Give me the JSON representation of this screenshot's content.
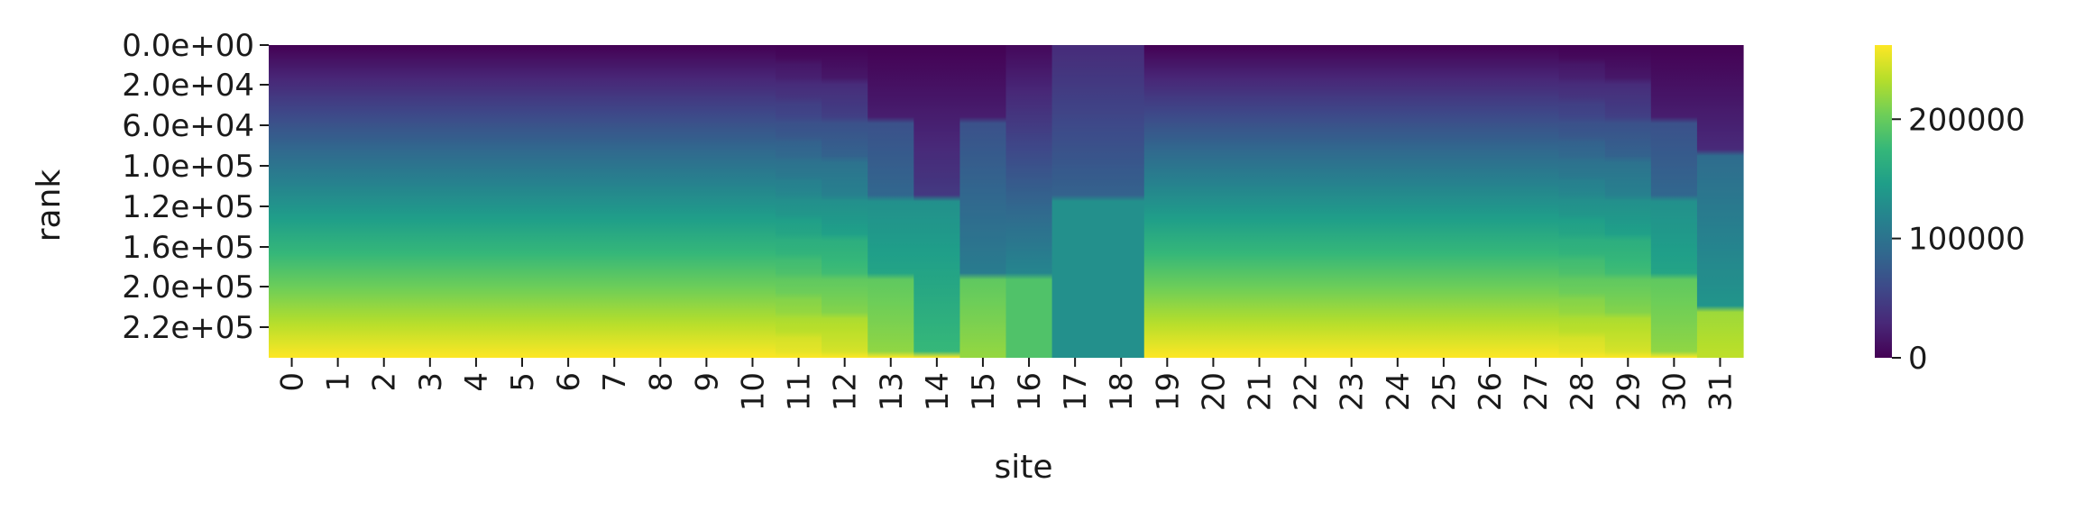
{
  "chart_data": {
    "type": "heatmap",
    "title": "",
    "xlabel": "site",
    "ylabel": "rank",
    "x_categories": [
      "0",
      "1",
      "2",
      "3",
      "4",
      "5",
      "6",
      "7",
      "8",
      "9",
      "10",
      "11",
      "12",
      "13",
      "14",
      "15",
      "16",
      "17",
      "18",
      "19",
      "20",
      "21",
      "22",
      "23",
      "24",
      "25",
      "26",
      "27",
      "28",
      "29",
      "30",
      "31"
    ],
    "y_tick_labels": [
      "0.0e+00",
      "2.0e+04",
      "6.0e+04",
      "1.0e+05",
      "1.2e+05",
      "1.6e+05",
      "2.0e+05",
      "2.2e+05"
    ],
    "colormap": "viridis",
    "value_range": [
      0,
      262144
    ],
    "colorbar": {
      "ticks": [
        0,
        100000,
        200000
      ],
      "tick_labels": [
        "0",
        "100000",
        "200000"
      ],
      "placement": "right"
    },
    "columns": {
      "smooth": [
        "0",
        "1",
        "2",
        "3",
        "4",
        "5",
        "6",
        "7",
        "8",
        "9",
        "10",
        "19",
        "20",
        "21",
        "22",
        "23",
        "24",
        "25",
        "26",
        "27"
      ],
      "stepped_light": [
        "11",
        "28"
      ],
      "stepped_8_levels": [
        "12",
        "29"
      ],
      "stepped_4_levels": [
        "13",
        "30"
      ],
      "stepped_2_levels": [
        "14",
        "15",
        "31"
      ],
      "stepped_1_level": [
        "16"
      ],
      "nearly_constant": [
        "17",
        "18"
      ]
    }
  }
}
